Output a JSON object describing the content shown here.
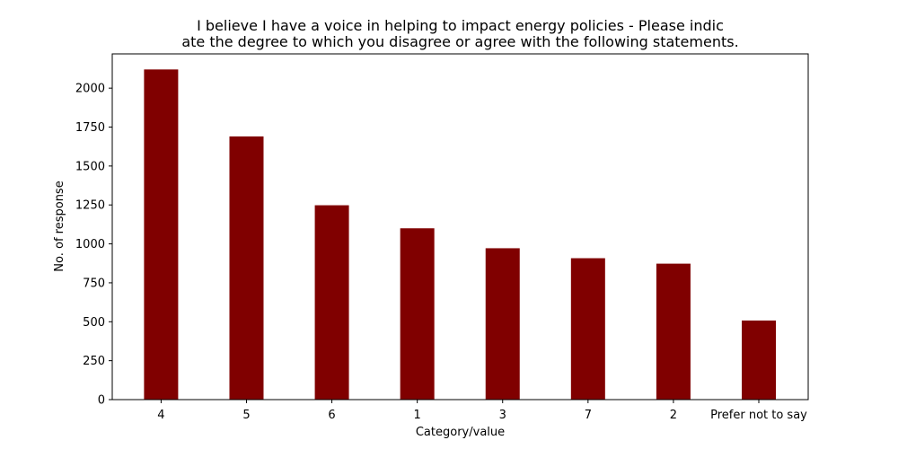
{
  "chart_data": {
    "type": "bar",
    "title_lines": [
      "I believe I have a voice in helping to impact energy policies - Please indic",
      "ate the degree to which you disagree or agree with the following statements."
    ],
    "xlabel": "Category/value",
    "ylabel": "No. of response",
    "categories": [
      "4",
      "5",
      "6",
      "1",
      "3",
      "7",
      "2",
      "Prefer not to say"
    ],
    "values": [
      2120,
      1690,
      1248,
      1100,
      972,
      908,
      873,
      508
    ],
    "ylim": [
      0,
      2220
    ],
    "yticks": [
      0,
      250,
      500,
      750,
      1000,
      1250,
      1500,
      1750,
      2000
    ],
    "bar_color": "#800000",
    "grid": false,
    "legend": "none"
  }
}
